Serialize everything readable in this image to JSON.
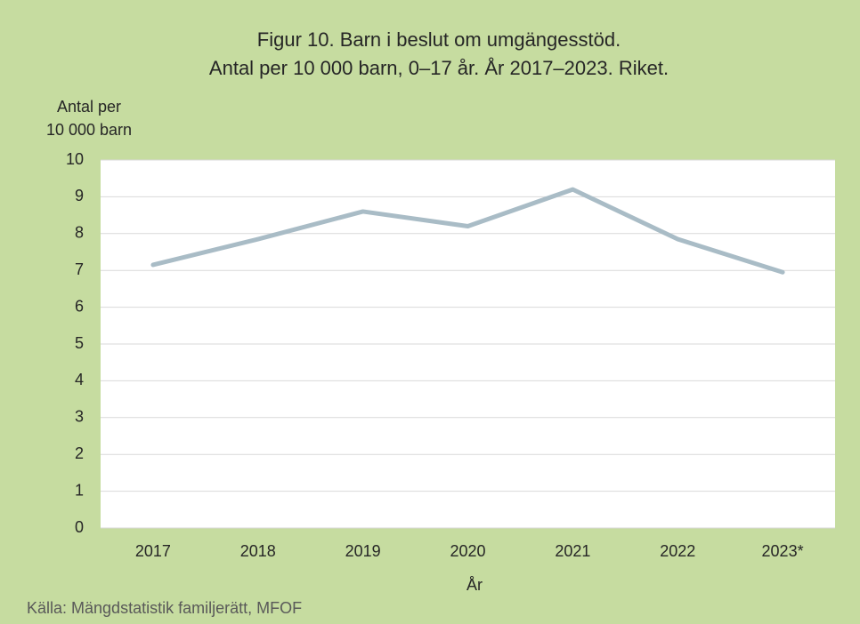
{
  "chart_data": {
    "type": "line",
    "title": [
      "Figur 10. Barn i beslut om umgängesstöd.",
      "Antal per 10 000 barn, 0–17 år. År 2017–2023. Riket."
    ],
    "ylabel": [
      "Antal per",
      "10 000 barn"
    ],
    "xlabel": "År",
    "source": "Källa: Mängdstatistik familjerätt, MFOF",
    "categories": [
      "2017",
      "2018",
      "2019",
      "2020",
      "2021",
      "2022",
      "2023*"
    ],
    "series": [
      {
        "name": "Riket",
        "color": "#a9bcc6",
        "values": [
          7.15,
          7.85,
          8.6,
          8.2,
          9.2,
          7.85,
          6.95
        ]
      }
    ],
    "ylim": [
      0,
      10
    ],
    "yticks": [
      0,
      1,
      2,
      3,
      4,
      5,
      6,
      7,
      8,
      9,
      10
    ],
    "grid": true
  }
}
